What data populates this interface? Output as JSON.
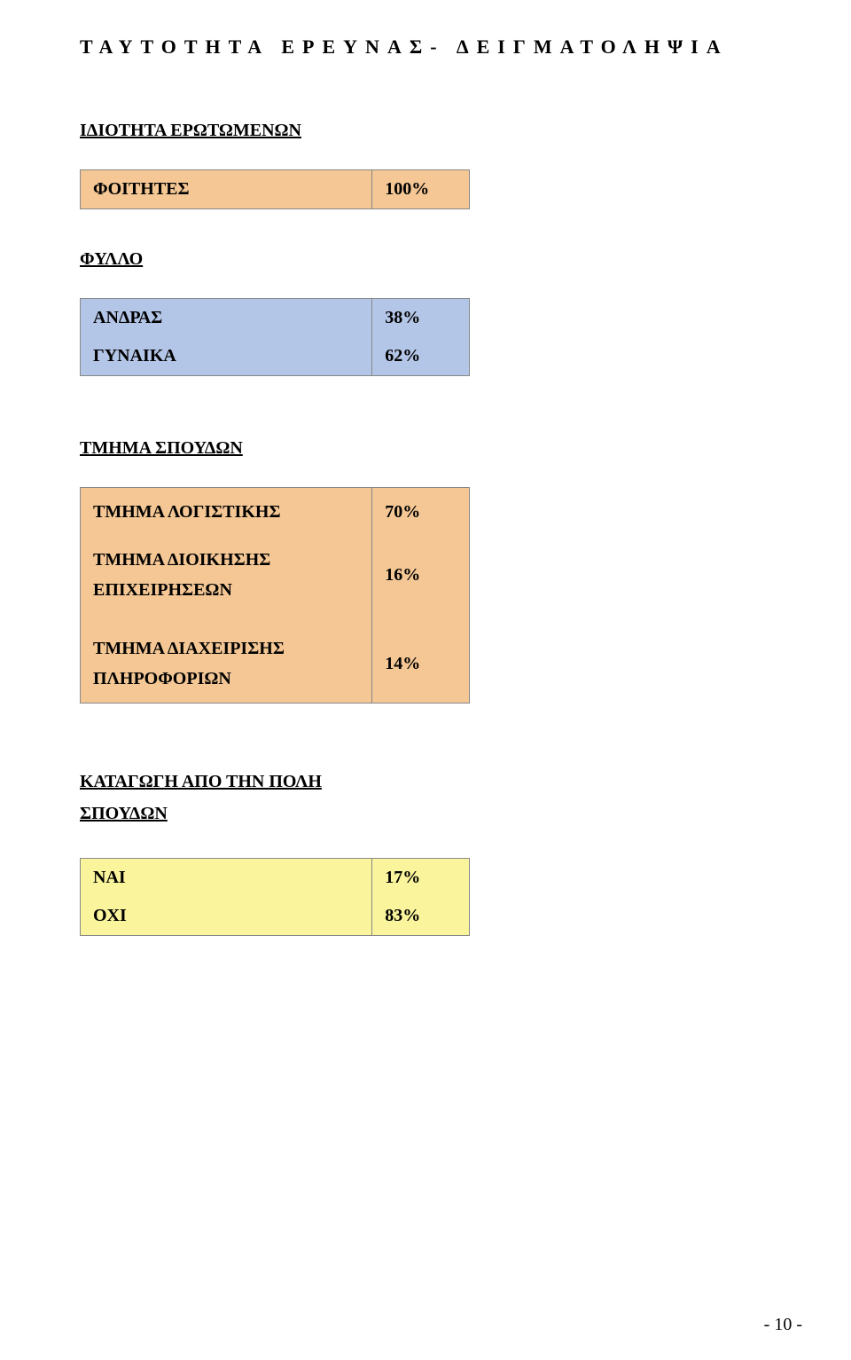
{
  "title": "ΤΑΥΤΟΤΗΤΑ ΕΡΕΥΝΑΣ- ΔΕΙΓΜΑΤΟΛΗΨΙΑ",
  "section1": {
    "header": "ΙΔΙΟΤΗΤΑ ΕΡΩΤΩΜΕΝΩΝ",
    "rows": [
      {
        "label": "ΦΟΙΤΗΤΕΣ",
        "value": "100%"
      }
    ],
    "box_color": "#f4c795"
  },
  "section2": {
    "header": "ΦΥΛΛΟ",
    "rows": [
      {
        "label": "ΑΝΔΡΑΣ",
        "value": "38%"
      },
      {
        "label": "ΓΥΝΑΙΚΑ",
        "value": "62%"
      }
    ],
    "box_color": "#b4c6e7"
  },
  "section3": {
    "header": "ΤΜΗΜΑ ΣΠΟΥΔΩΝ",
    "rows_top": [
      {
        "label": "ΤΜΗΜΑ ΛΟΓΙΣΤΙΚΗΣ",
        "value": "70%"
      },
      {
        "label_line1": "ΤΜΗΜΑ ΔΙΟΙΚΗΣΗΣ",
        "label_line2": "ΕΠΙΧΕΙΡΗΣΕΩΝ",
        "value": "16%"
      }
    ],
    "rows_bottom": [
      {
        "label_line1": "ΤΜΗΜΑ ΔΙΑΧΕΙΡΙΣΗΣ",
        "label_line2": "ΠΛΗΡΟΦΟΡΙΩΝ",
        "value": "14%"
      }
    ],
    "box_color": "#f4c795"
  },
  "section4": {
    "header_line1": "ΚΑΤΑΓΩΓΗ ΑΠΟ ΤΗΝ ΠΟΛΗ",
    "header_line2": "ΣΠΟΥΔΩΝ",
    "rows": [
      {
        "label": "ΝΑΙ",
        "value": "17%"
      },
      {
        "label": "ΟΧΙ",
        "value": "83%"
      }
    ],
    "box_color": "#faf49c"
  },
  "page_number": "- 10 -",
  "colors": {
    "orange": "#f4c795",
    "blue": "#b4c6e7",
    "yellow": "#faf49c",
    "background": "#ffffff",
    "border": "#888888",
    "text": "#000000"
  },
  "typography": {
    "font_family": "Times New Roman",
    "title_fontsize": 22,
    "title_letterspacing": 9,
    "header_fontsize": 20,
    "cell_fontsize": 20,
    "weight": "bold"
  }
}
